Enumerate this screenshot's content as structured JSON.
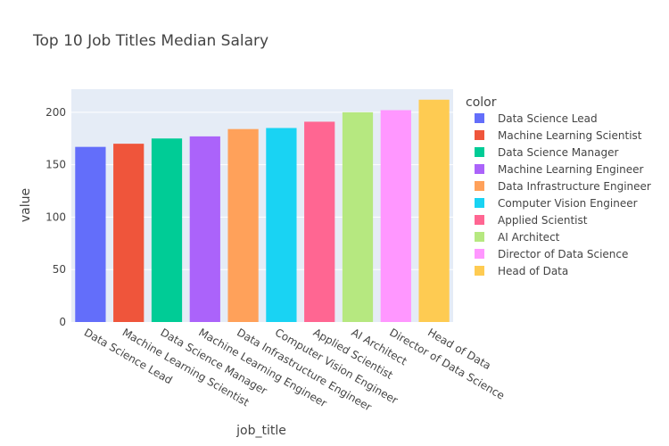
{
  "chart_data": {
    "type": "bar",
    "title": "Top 10 Job Titles Median Salary",
    "xlabel": "job_title",
    "ylabel": "value",
    "ylim": [
      0,
      222
    ],
    "yticks": [
      0,
      50,
      100,
      150,
      200
    ],
    "grid": true,
    "legend_position": "right",
    "legend_title": "color",
    "categories": [
      "Data Science Lead",
      "Machine Learning Scientist",
      "Data Science Manager",
      "Machine Learning Engineer",
      "Data Infrastructure Engineer",
      "Computer Vision Engineer",
      "Applied Scientist",
      "AI Architect",
      "Director of Data Science",
      "Head of Data"
    ],
    "values": [
      167,
      170,
      175,
      177,
      184,
      185,
      191,
      200,
      202,
      212
    ],
    "colors": [
      "#636efa",
      "#EF553B",
      "#00cc96",
      "#ab63fa",
      "#FFA15A",
      "#19d3f3",
      "#FF6692",
      "#B6E880",
      "#FF97FF",
      "#FECB52"
    ]
  },
  "theme": {
    "plot_bg": "#e5ecf6",
    "grid_color": "#ffffff",
    "text_color": "#444444"
  }
}
